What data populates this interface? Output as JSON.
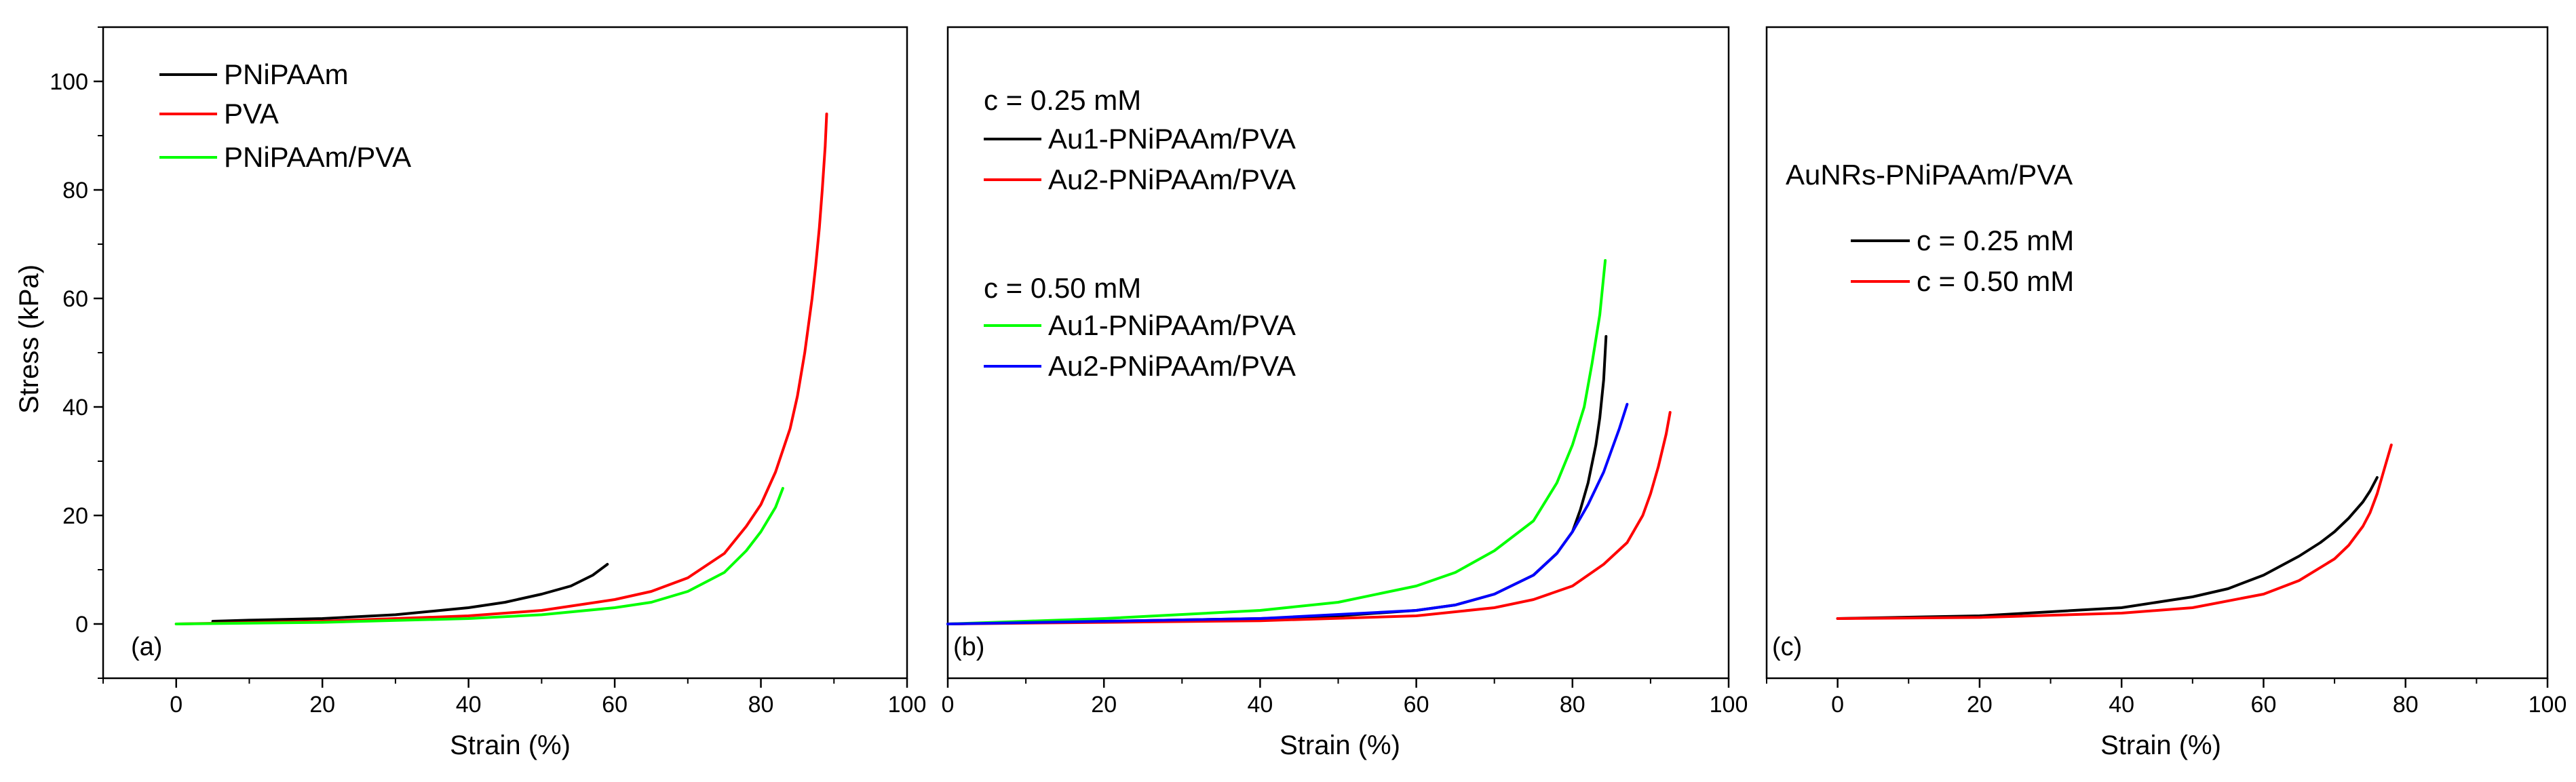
{
  "chart_data": [
    {
      "type": "line",
      "panel_label": "(a)",
      "xlabel": "Strain (%)",
      "ylabel": "Stress (kPa)",
      "xlim": [
        -10,
        100
      ],
      "ylim": [
        -10,
        110
      ],
      "xticks": [
        0,
        20,
        40,
        60,
        80,
        100
      ],
      "yticks": [
        0,
        20,
        40,
        60,
        80,
        100
      ],
      "legend_groups": [],
      "series": [
        {
          "name": "PNiPAAm",
          "color": "#000000",
          "x": [
            5,
            10,
            20,
            30,
            40,
            45,
            50,
            54,
            57,
            59
          ],
          "y": [
            0.5,
            0.7,
            1.0,
            1.7,
            3.0,
            4.0,
            5.5,
            7.0,
            9.0,
            11.0
          ]
        },
        {
          "name": "PVA",
          "color": "#ff0000",
          "x": [
            0,
            20,
            40,
            50,
            60,
            65,
            70,
            75,
            78,
            80,
            82,
            84,
            85,
            86,
            87,
            87.5,
            88,
            88.4,
            88.8,
            89
          ],
          "y": [
            0,
            0.5,
            1.5,
            2.5,
            4.5,
            6.0,
            8.5,
            13.0,
            18.0,
            22.0,
            28.0,
            36.0,
            42.0,
            50.0,
            60.0,
            66.0,
            73.0,
            80.0,
            88.0,
            94.0
          ]
        },
        {
          "name": "PNiPAAm/PVA",
          "color": "#00ff00",
          "x": [
            0,
            20,
            40,
            50,
            60,
            65,
            70,
            75,
            78,
            80,
            82,
            83
          ],
          "y": [
            0,
            0.3,
            1.0,
            1.7,
            3.0,
            4.0,
            6.0,
            9.5,
            13.5,
            17.0,
            21.5,
            25.0
          ]
        }
      ]
    },
    {
      "type": "line",
      "panel_label": "(b)",
      "xlabel": "Strain (%)",
      "ylabel": "",
      "xlim": [
        0,
        100
      ],
      "ylim": [
        -10,
        110
      ],
      "xticks": [
        0,
        20,
        40,
        60,
        80,
        100
      ],
      "yticks": [],
      "legend_groups": [
        {
          "heading": "c = 0.25 mM",
          "series_names": [
            "Au1-PNiPAAm/PVA",
            "Au2-PNiPAAm/PVA"
          ]
        },
        {
          "heading": "c = 0.50 mM",
          "series_names": [
            "Au1-PNiPAAm/PVA",
            "Au2-PNiPAAm/PVA"
          ]
        }
      ],
      "series": [
        {
          "name": "Au1-PNiPAAm/PVA",
          "color": "#000000",
          "x": [
            0,
            20,
            40,
            50,
            60,
            65,
            70,
            75,
            78,
            80,
            81,
            82,
            83,
            83.5,
            84,
            84.3
          ],
          "y": [
            0,
            0.5,
            1.0,
            1.5,
            2.5,
            3.5,
            5.5,
            9.0,
            13.0,
            17.0,
            21.0,
            26.0,
            33.0,
            38.0,
            45.0,
            53.0
          ]
        },
        {
          "name": "Au2-PNiPAAm/PVA",
          "color": "#ff0000",
          "x": [
            0,
            20,
            40,
            60,
            70,
            75,
            80,
            84,
            87,
            89,
            90,
            91,
            92,
            92.5
          ],
          "y": [
            0,
            0.3,
            0.6,
            1.5,
            3.0,
            4.5,
            7.0,
            11.0,
            15.0,
            20.0,
            24.0,
            29.0,
            35.0,
            39.0
          ]
        },
        {
          "name": "Au1-PNiPAAm/PVA",
          "color": "#00ff00",
          "x": [
            0,
            20,
            40,
            50,
            60,
            65,
            70,
            75,
            78,
            80,
            81.5,
            82.5,
            83.5,
            84.2
          ],
          "y": [
            0,
            1.0,
            2.5,
            4.0,
            7.0,
            9.5,
            13.5,
            19.0,
            26.0,
            33.0,
            40.0,
            48.0,
            57.0,
            67.0
          ]
        },
        {
          "name": "Au2-PNiPAAm/PVA",
          "color": "#0000ff",
          "x": [
            0,
            20,
            40,
            60,
            65,
            70,
            75,
            78,
            80,
            82,
            84,
            85,
            86,
            87
          ],
          "y": [
            0,
            0.5,
            1.0,
            2.5,
            3.5,
            5.5,
            9.0,
            13.0,
            17.0,
            22.0,
            28.0,
            32.0,
            36.0,
            40.5
          ]
        }
      ]
    },
    {
      "type": "line",
      "panel_label": "(c)",
      "xlabel": "Strain (%)",
      "ylabel": "",
      "xlim": [
        -10,
        100
      ],
      "ylim": [
        -10,
        110
      ],
      "xticks": [
        0,
        20,
        40,
        60,
        80,
        100
      ],
      "yticks": [],
      "legend_title": "AuNRs-PNiPAAm/PVA",
      "legend_groups": [],
      "series": [
        {
          "name": "c = 0.25 mM",
          "color": "#000000",
          "x": [
            0,
            20,
            40,
            50,
            55,
            60,
            65,
            68,
            70,
            72,
            74,
            75,
            76
          ],
          "y": [
            1.0,
            1.5,
            3.0,
            5.0,
            6.5,
            9.0,
            12.5,
            15.0,
            17.0,
            19.5,
            22.5,
            24.5,
            27.0
          ]
        },
        {
          "name": "c = 0.50 mM",
          "color": "#ff0000",
          "x": [
            0,
            20,
            40,
            50,
            60,
            65,
            70,
            72,
            74,
            75,
            76,
            77,
            78
          ],
          "y": [
            1.0,
            1.2,
            2.0,
            3.0,
            5.5,
            8.0,
            12.0,
            14.5,
            18.0,
            20.5,
            24.0,
            28.5,
            33.0
          ]
        }
      ]
    }
  ]
}
